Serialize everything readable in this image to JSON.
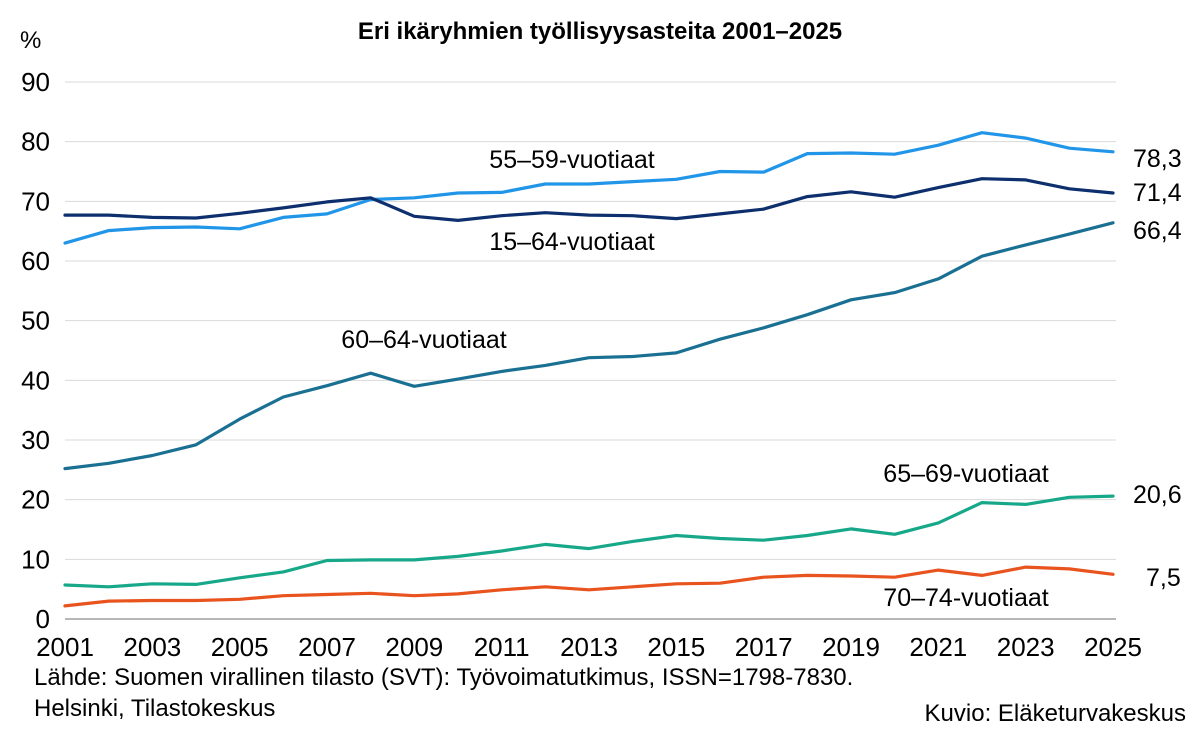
{
  "chart_data": {
    "type": "line",
    "title": "Eri ikäryhmien työllisyysasteita 2001–2025",
    "ylabel": "%",
    "ylim": [
      0,
      90
    ],
    "yticks": [
      0,
      10,
      20,
      30,
      40,
      50,
      60,
      70,
      80,
      90
    ],
    "x": [
      2001,
      2002,
      2003,
      2004,
      2005,
      2006,
      2007,
      2008,
      2009,
      2010,
      2011,
      2012,
      2013,
      2014,
      2015,
      2016,
      2017,
      2018,
      2019,
      2020,
      2021,
      2022,
      2023,
      2024,
      2025
    ],
    "xticks": [
      "2001",
      "2003",
      "2005",
      "2007",
      "2009",
      "2011",
      "2013",
      "2015",
      "2017",
      "2019",
      "2021",
      "2023",
      "2025"
    ],
    "grid": true,
    "series": [
      {
        "name": "55–59-vuotiaat",
        "color": "#2196e8",
        "end_label": "78,3",
        "values": [
          63.0,
          65.1,
          65.6,
          65.7,
          65.4,
          67.3,
          67.9,
          70.3,
          70.6,
          71.4,
          71.5,
          72.9,
          72.9,
          73.3,
          73.7,
          75.0,
          74.9,
          78.0,
          78.1,
          77.9,
          79.4,
          81.5,
          80.6,
          78.9,
          78.3
        ]
      },
      {
        "name": "15–64-vuotiaat",
        "color": "#0d2f6e",
        "end_label": "71,4",
        "values": [
          67.7,
          67.7,
          67.3,
          67.2,
          68.0,
          68.9,
          69.9,
          70.6,
          67.5,
          66.8,
          67.6,
          68.1,
          67.7,
          67.6,
          67.1,
          67.9,
          68.7,
          70.8,
          71.6,
          70.7,
          72.3,
          73.8,
          73.6,
          72.1,
          71.4
        ]
      },
      {
        "name": "60–64-vuotiaat",
        "color": "#1a7093",
        "end_label": "66,4",
        "values": [
          25.2,
          26.1,
          27.4,
          29.2,
          33.5,
          37.2,
          39.1,
          41.2,
          39.0,
          40.2,
          41.5,
          42.5,
          43.8,
          44.0,
          44.6,
          46.9,
          48.8,
          51.0,
          53.5,
          54.7,
          57.0,
          60.8,
          62.7,
          64.5,
          66.4
        ]
      },
      {
        "name": "65–69-vuotiaat",
        "color": "#17a88a",
        "end_label": "20,6",
        "values": [
          5.7,
          5.4,
          5.9,
          5.8,
          6.9,
          7.9,
          9.8,
          9.9,
          9.9,
          10.5,
          11.4,
          12.5,
          11.8,
          13.0,
          14.0,
          13.5,
          13.2,
          14.0,
          15.1,
          14.2,
          16.1,
          19.5,
          19.2,
          20.4,
          20.6
        ]
      },
      {
        "name": "70–74-vuotiaat",
        "color": "#e8531e",
        "end_label": "7,5",
        "values": [
          2.2,
          3.0,
          3.1,
          3.1,
          3.3,
          3.9,
          4.1,
          4.3,
          3.9,
          4.2,
          4.9,
          5.4,
          4.9,
          5.4,
          5.9,
          6.0,
          7.0,
          7.3,
          7.2,
          7.0,
          8.2,
          7.3,
          8.7,
          8.4,
          7.5
        ]
      }
    ]
  },
  "source": {
    "line1": "Lähde: Suomen virallinen tilasto (SVT): Työvoimatutkimus, ISSN=1798-7830.",
    "line2": "Helsinki, Tilastokeskus",
    "credit": "Kuvio: Eläketurvakeskus"
  }
}
